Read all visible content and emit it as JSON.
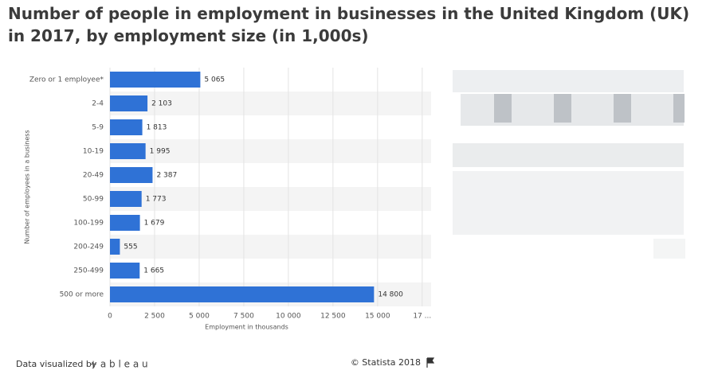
{
  "chart_data": {
    "type": "bar",
    "orientation": "horizontal",
    "title": "Number of people in employment in businesses in the United Kingdom (UK) in 2017, by employment size (in 1,000s)",
    "categories": [
      "Zero or 1 employee*",
      "2-4",
      "5-9",
      "10-19",
      "20-49",
      "50-99",
      "100-199",
      "200-249",
      "250-499",
      "500 or more"
    ],
    "values": [
      5065,
      2103,
      1813,
      1995,
      2387,
      1773,
      1679,
      555,
      1665,
      14800
    ],
    "value_labels": [
      "5 065",
      "2 103",
      "1 813",
      "1 995",
      "2 387",
      "1 773",
      "1 679",
      "555",
      "1 665",
      "14 800"
    ],
    "color": "#2f72d6",
    "xlim": [
      0,
      18000
    ],
    "xticks": [
      0,
      {
        "value": 2500,
        "label": "2 500"
      },
      {
        "value": 5000,
        "label": "5 000"
      },
      {
        "value": 7500,
        "label": "7 500"
      },
      {
        "value": 10000,
        "label": "10 000"
      },
      {
        "value": 12500,
        "label": "12 500"
      },
      {
        "value": 15000,
        "label": "15 000"
      },
      {
        "value": 17500,
        "label": "17 ..."
      }
    ],
    "x_label": "Employment in thousands",
    "y_label": "Number of employees in a business",
    "grid": true
  },
  "footer": {
    "credit": "Data visualized by",
    "logo": "+ a b l e a u",
    "source": "© Statista 2018"
  }
}
